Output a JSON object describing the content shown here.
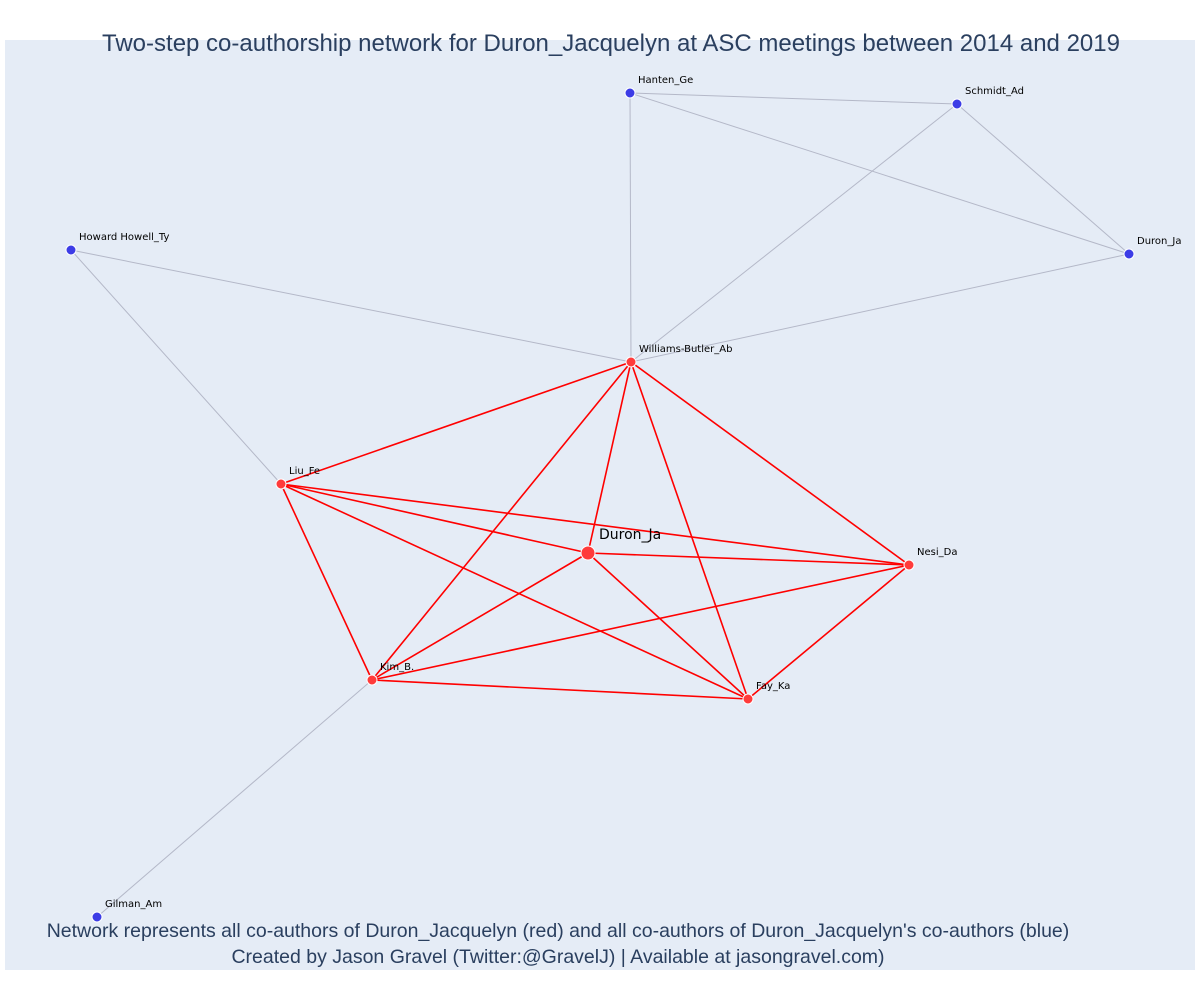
{
  "title": "Two-step co-authorship network for Duron_Jacquelyn at ASC meetings between 2014 and 2019",
  "caption": {
    "line1": "Network represents all co-authors of Duron_Jacquelyn (red) and all co-authors of Duron_Jacquelyn's co-authors (blue)",
    "line2": "Created by Jason Gravel (Twitter:@GravelJ) | Available at jasongravel.com)"
  },
  "colors": {
    "background": "#e5ecf6",
    "red_edge": "#ff0000",
    "blue_edge": "#b4b8c8",
    "red_node": "#ff3b3b",
    "blue_node": "#3c3ce6",
    "node_outline": "#ffffff"
  },
  "nodes": [
    {
      "id": "duron_center",
      "label": "Duron_Ja",
      "group": "red",
      "focal": true
    },
    {
      "id": "williams",
      "label": "Williams-Butler_Ab",
      "group": "red"
    },
    {
      "id": "liu",
      "label": "Liu_Fe",
      "group": "red"
    },
    {
      "id": "kim",
      "label": "Kim_B.",
      "group": "red"
    },
    {
      "id": "fay",
      "label": "Fay_Ka",
      "group": "red"
    },
    {
      "id": "nesi",
      "label": "Nesi_Da",
      "group": "red"
    },
    {
      "id": "hanten",
      "label": "Hanten_Ge",
      "group": "blue"
    },
    {
      "id": "schmidt",
      "label": "Schmidt_Ad",
      "group": "blue"
    },
    {
      "id": "duron_blue",
      "label": "Duron_Ja",
      "group": "blue"
    },
    {
      "id": "howard",
      "label": "Howard Howell_Ty",
      "group": "blue"
    },
    {
      "id": "gilman",
      "label": "Gilman_Am",
      "group": "blue"
    }
  ],
  "edges": [
    {
      "from": "williams",
      "to": "liu",
      "group": "red"
    },
    {
      "from": "williams",
      "to": "duron_center",
      "group": "red"
    },
    {
      "from": "williams",
      "to": "kim",
      "group": "red"
    },
    {
      "from": "williams",
      "to": "fay",
      "group": "red"
    },
    {
      "from": "williams",
      "to": "nesi",
      "group": "red"
    },
    {
      "from": "liu",
      "to": "duron_center",
      "group": "red"
    },
    {
      "from": "liu",
      "to": "nesi",
      "group": "red"
    },
    {
      "from": "liu",
      "to": "kim",
      "group": "red"
    },
    {
      "from": "liu",
      "to": "fay",
      "group": "red"
    },
    {
      "from": "duron_center",
      "to": "nesi",
      "group": "red"
    },
    {
      "from": "duron_center",
      "to": "kim",
      "group": "red"
    },
    {
      "from": "duron_center",
      "to": "fay",
      "group": "red"
    },
    {
      "from": "kim",
      "to": "nesi",
      "group": "red"
    },
    {
      "from": "kim",
      "to": "fay",
      "group": "red"
    },
    {
      "from": "fay",
      "to": "nesi",
      "group": "red"
    },
    {
      "from": "hanten",
      "to": "schmidt",
      "group": "blue"
    },
    {
      "from": "hanten",
      "to": "duron_blue",
      "group": "blue"
    },
    {
      "from": "hanten",
      "to": "williams",
      "group": "blue"
    },
    {
      "from": "schmidt",
      "to": "duron_blue",
      "group": "blue"
    },
    {
      "from": "schmidt",
      "to": "williams",
      "group": "blue"
    },
    {
      "from": "duron_blue",
      "to": "williams",
      "group": "blue"
    },
    {
      "from": "howard",
      "to": "williams",
      "group": "blue"
    },
    {
      "from": "howard",
      "to": "liu",
      "group": "blue"
    },
    {
      "from": "gilman",
      "to": "kim",
      "group": "blue"
    }
  ]
}
